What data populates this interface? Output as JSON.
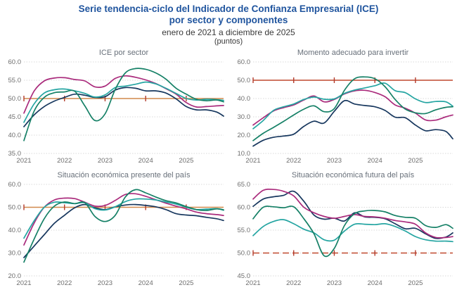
{
  "header": {
    "title_line1": "Serie tendencia-ciclo del Indicador de Confianza Empresarial (ICE)",
    "title_line2": "por sector y componentes",
    "subtitle": "enero de 2021 a diciembre de 2025",
    "units": "(puntos)"
  },
  "palette": {
    "title_blue": "#1F549E",
    "chart_title_gray": "#68707A",
    "axis_label_gray": "#6e6e6e",
    "gridline_gray": "#d9d9d9",
    "ref_orange": "#D1894C",
    "ref_red": "#C0492F",
    "ref_tick_red": "#B23A2B",
    "series_navy": "#17375E",
    "series_magenta": "#AA2B7C",
    "series_teal": "#25A5A2",
    "series_green": "#158066"
  },
  "chart_data": [
    {
      "type": "line",
      "title": "ICE por sector",
      "x": [
        2021,
        2021.25,
        2021.5,
        2021.75,
        2022,
        2022.25,
        2022.5,
        2022.75,
        2023,
        2023.25,
        2023.5,
        2023.75,
        2024,
        2024.25,
        2024.5,
        2024.75,
        2025,
        2025.25,
        2025.5,
        2025.75,
        2025.92
      ],
      "xlim": [
        2021,
        2025.92
      ],
      "xticks": [
        2021,
        2022,
        2023,
        2024,
        2025
      ],
      "ylim": [
        35,
        60
      ],
      "yticks": [
        35,
        40,
        45,
        50,
        55,
        60
      ],
      "grid": true,
      "legend": "none",
      "ref_line": {
        "value": 50,
        "style": "solid",
        "color": "#D1894C",
        "tick_color": "#B23A2B"
      },
      "series": [
        {
          "name": "serie-navy",
          "color": "#17375E",
          "values": [
            42.3,
            45.5,
            47.8,
            49.3,
            50.3,
            51.2,
            50.9,
            50.3,
            50.5,
            52.3,
            53.0,
            52.8,
            52.1,
            52.1,
            51.5,
            49.9,
            47.8,
            46.9,
            46.9,
            46.3,
            45.2
          ]
        },
        {
          "name": "serie-magenta",
          "color": "#AA2B7C",
          "values": [
            46.0,
            52.0,
            54.8,
            55.6,
            55.7,
            55.2,
            54.8,
            53.2,
            53.4,
            55.5,
            56.2,
            55.8,
            55.1,
            54.1,
            52.7,
            51.2,
            48.9,
            47.7,
            47.8,
            48.0,
            48.1
          ]
        },
        {
          "name": "serie-teal",
          "color": "#25A5A2",
          "values": [
            43.5,
            48.5,
            51.5,
            52.4,
            52.6,
            52.1,
            51.4,
            50.4,
            51.0,
            53.0,
            53.4,
            53.9,
            54.5,
            54.0,
            52.8,
            51.4,
            50.0,
            49.6,
            49.8,
            49.7,
            49.5
          ]
        },
        {
          "name": "serie-green",
          "color": "#158066",
          "values": [
            38.5,
            46.5,
            50.3,
            51.6,
            51.8,
            52.0,
            48.0,
            44.0,
            45.8,
            52.5,
            57.0,
            58.2,
            58.0,
            57.0,
            55.3,
            52.8,
            51.2,
            49.8,
            49.4,
            49.6,
            49.1
          ]
        }
      ]
    },
    {
      "type": "line",
      "title": "Momento adecuado para invertir",
      "x": [
        2021,
        2021.25,
        2021.5,
        2021.75,
        2022,
        2022.25,
        2022.5,
        2022.75,
        2023,
        2023.25,
        2023.5,
        2023.75,
        2024,
        2024.25,
        2024.5,
        2024.75,
        2025,
        2025.25,
        2025.5,
        2025.75,
        2025.92
      ],
      "xlim": [
        2021,
        2025.92
      ],
      "xticks": [
        2021,
        2022,
        2023,
        2024,
        2025
      ],
      "ylim": [
        10,
        60
      ],
      "yticks": [
        10,
        20,
        30,
        40,
        50,
        60
      ],
      "grid": true,
      "legend": "none",
      "ref_line": {
        "value": 50,
        "style": "solid",
        "color": "#C0492F",
        "tick_color": "#B23A2B"
      },
      "series": [
        {
          "name": "serie-navy",
          "color": "#17375E",
          "values": [
            14.0,
            17.2,
            18.8,
            19.5,
            20.5,
            24.8,
            27.6,
            26.6,
            33.0,
            38.8,
            37.0,
            36.2,
            35.5,
            33.5,
            29.8,
            29.5,
            25.5,
            22.4,
            23.0,
            22.0,
            18.0
          ]
        },
        {
          "name": "serie-magenta",
          "color": "#AA2B7C",
          "values": [
            25.5,
            29.5,
            33.2,
            35.0,
            36.5,
            39.2,
            41.4,
            38.2,
            39.5,
            42.5,
            44.2,
            44.5,
            43.3,
            41.0,
            36.5,
            34.7,
            32.0,
            28.3,
            28.2,
            30.0,
            31.0
          ]
        },
        {
          "name": "serie-teal",
          "color": "#25A5A2",
          "values": [
            23.5,
            28.0,
            33.5,
            35.5,
            37.0,
            39.5,
            40.8,
            39.6,
            39.8,
            42.8,
            44.6,
            45.8,
            47.0,
            48.4,
            44.3,
            43.2,
            39.8,
            37.8,
            38.4,
            38.2,
            35.8
          ]
        },
        {
          "name": "serie-green",
          "color": "#158066",
          "values": [
            17.0,
            21.0,
            24.2,
            27.5,
            31.0,
            34.2,
            36.0,
            32.8,
            34.5,
            44.5,
            50.8,
            51.8,
            50.8,
            46.5,
            39.5,
            34.2,
            32.2,
            31.8,
            33.8,
            35.2,
            35.5
          ]
        }
      ]
    },
    {
      "type": "line",
      "title": "Situación económica presente del país",
      "x": [
        2021,
        2021.25,
        2021.5,
        2021.75,
        2022,
        2022.25,
        2022.5,
        2022.75,
        2023,
        2023.25,
        2023.5,
        2023.75,
        2024,
        2024.25,
        2024.5,
        2024.75,
        2025,
        2025.25,
        2025.5,
        2025.75,
        2025.92
      ],
      "xlim": [
        2021,
        2025.92
      ],
      "xticks": [
        2021,
        2022,
        2023,
        2024,
        2025
      ],
      "ylim": [
        20,
        60
      ],
      "yticks": [
        20,
        30,
        40,
        50,
        60
      ],
      "grid": true,
      "legend": "none",
      "ref_line": {
        "value": 50,
        "style": "solid",
        "color": "#D1894C",
        "tick_color": "#B23A2B"
      },
      "series": [
        {
          "name": "serie-navy",
          "color": "#17375E",
          "values": [
            28.0,
            33.0,
            38.0,
            43.0,
            46.5,
            49.8,
            51.2,
            49.8,
            49.0,
            50.2,
            51.0,
            51.2,
            50.8,
            50.2,
            49.0,
            47.2,
            46.6,
            46.3,
            45.6,
            45.0,
            44.2
          ]
        },
        {
          "name": "serie-magenta",
          "color": "#AA2B7C",
          "values": [
            33.5,
            43.0,
            50.0,
            53.2,
            54.0,
            53.8,
            52.2,
            50.5,
            50.8,
            53.0,
            55.6,
            55.9,
            54.8,
            53.3,
            51.8,
            50.5,
            49.3,
            47.9,
            47.2,
            46.8,
            46.4
          ]
        },
        {
          "name": "serie-teal",
          "color": "#25A5A2",
          "values": [
            36.5,
            44.0,
            50.0,
            52.2,
            52.0,
            51.6,
            52.0,
            49.4,
            48.8,
            50.2,
            52.5,
            53.6,
            53.6,
            53.2,
            52.3,
            51.4,
            50.0,
            49.0,
            49.2,
            49.4,
            48.7
          ]
        },
        {
          "name": "serie-green",
          "color": "#158066",
          "values": [
            26.0,
            36.0,
            45.0,
            50.5,
            52.3,
            51.6,
            52.0,
            46.0,
            43.8,
            46.5,
            54.5,
            57.7,
            56.3,
            54.5,
            52.9,
            51.9,
            50.3,
            49.0,
            48.6,
            49.3,
            48.9
          ]
        }
      ]
    },
    {
      "type": "line",
      "title": "Situación económica futura del país",
      "x": [
        2021,
        2021.25,
        2021.5,
        2021.75,
        2022,
        2022.25,
        2022.5,
        2022.75,
        2023,
        2023.25,
        2023.5,
        2023.75,
        2024,
        2024.25,
        2024.5,
        2024.75,
        2025,
        2025.25,
        2025.5,
        2025.75,
        2025.92
      ],
      "xlim": [
        2021,
        2025.92
      ],
      "xticks": [
        2021,
        2022,
        2023,
        2024,
        2025
      ],
      "ylim": [
        45,
        65
      ],
      "yticks": [
        45,
        50,
        55,
        60,
        65
      ],
      "grid": true,
      "legend": "none",
      "ref_line": {
        "value": 50,
        "style": "dashed",
        "color": "#C0492F",
        "tick_color": "#B23A2B"
      },
      "series": [
        {
          "name": "serie-navy",
          "color": "#17375E",
          "values": [
            60.2,
            61.8,
            62.3,
            62.6,
            63.5,
            61.3,
            58.3,
            57.4,
            57.6,
            57.0,
            58.8,
            57.9,
            57.8,
            57.5,
            56.4,
            55.3,
            55.4,
            54.2,
            53.2,
            53.5,
            54.4
          ]
        },
        {
          "name": "serie-magenta",
          "color": "#AA2B7C",
          "values": [
            61.8,
            63.7,
            63.9,
            63.5,
            62.5,
            60.0,
            58.8,
            58.0,
            57.6,
            58.0,
            58.4,
            58.0,
            57.9,
            57.6,
            57.1,
            56.8,
            56.3,
            54.4,
            53.4,
            53.4,
            53.6
          ]
        },
        {
          "name": "serie-teal",
          "color": "#25A5A2",
          "values": [
            53.8,
            55.8,
            56.9,
            57.3,
            56.4,
            55.2,
            54.4,
            52.9,
            52.8,
            54.8,
            56.3,
            56.3,
            56.2,
            56.4,
            55.8,
            54.8,
            53.6,
            52.9,
            52.6,
            52.6,
            52.5
          ]
        },
        {
          "name": "serie-green",
          "color": "#158066",
          "values": [
            57.5,
            60.0,
            60.1,
            59.9,
            60.1,
            57.5,
            54.2,
            49.4,
            51.0,
            56.0,
            58.6,
            59.2,
            59.3,
            59.0,
            58.2,
            57.8,
            57.6,
            56.0,
            55.6,
            56.2,
            55.4
          ]
        }
      ]
    }
  ]
}
